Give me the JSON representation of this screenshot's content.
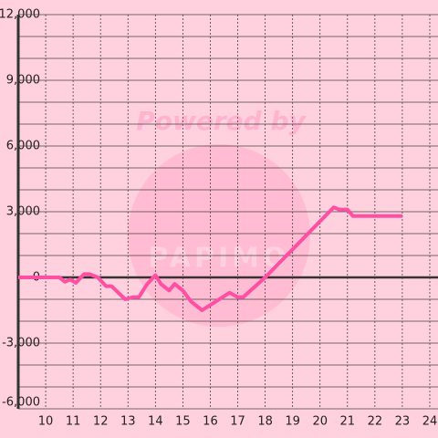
{
  "chart_data": {
    "type": "line",
    "watermark_top": "Powered by",
    "watermark_bottom": "PAPIMO",
    "x": [
      9,
      10.5,
      10.7,
      10.9,
      11.1,
      11.4,
      11.6,
      11.9,
      12.2,
      12.4,
      12.9,
      13.2,
      13.4,
      13.7,
      14.0,
      14.2,
      14.5,
      14.7,
      15.0,
      15.3,
      15.7,
      16.2,
      16.7,
      17.0,
      17.2,
      18.0,
      20.5,
      20.7,
      21.0,
      21.2,
      23.0
    ],
    "values": [
      0,
      0,
      -200,
      -100,
      -250,
      150,
      150,
      0,
      -400,
      -400,
      -1000,
      -900,
      -900,
      -300,
      100,
      -300,
      -600,
      -300,
      -600,
      -1100,
      -1500,
      -1100,
      -700,
      -900,
      -900,
      0,
      3200,
      3100,
      3100,
      2800,
      2800
    ],
    "color": "#ff4fa3",
    "xlim": [
      9,
      24.3
    ],
    "xticks": [
      10,
      11,
      12,
      13,
      14,
      15,
      16,
      17,
      18,
      19,
      20,
      21,
      22,
      23,
      24
    ],
    "ylim": [
      -6000,
      12000
    ],
    "yticks": [
      {
        "value": -6000,
        "label": "-6,000"
      },
      {
        "value": -3000,
        "label": "-3,000"
      },
      0,
      {
        "value": 3000,
        "label": "3,000"
      },
      {
        "value": 6000,
        "label": "6,000"
      },
      {
        "value": 9000,
        "label": "9,000"
      },
      {
        "value": 12000,
        "label": "12,000"
      }
    ],
    "y_minor_ticks": [
      -5000,
      -4000,
      -2000,
      -1000,
      1000,
      2000,
      4000,
      5000,
      7000,
      8000,
      10000,
      11000
    ],
    "grid": true
  }
}
